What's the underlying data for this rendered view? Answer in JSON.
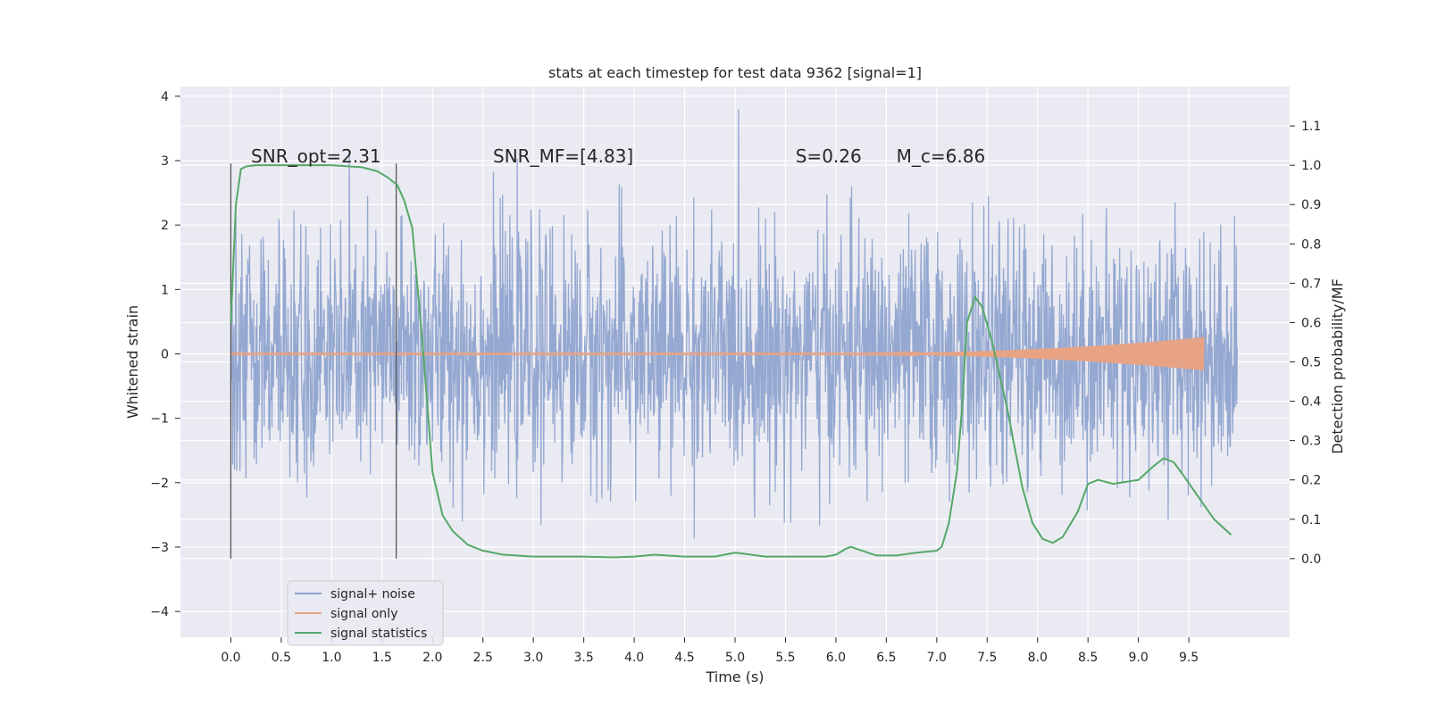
{
  "chart_data": {
    "type": "line",
    "title": "stats at each timestep for test data 9362 [signal=1]",
    "xlabel": "Time (s)",
    "ylabel": "Whitened strain",
    "ylabel_right": "Detection probability/MF",
    "xlim": [
      -0.5,
      10.5
    ],
    "ylim": [
      -4.4,
      4.15
    ],
    "ylim_right": [
      -0.2,
      1.2
    ],
    "xticks": [
      0.0,
      0.5,
      1.0,
      1.5,
      2.0,
      2.5,
      3.0,
      3.5,
      4.0,
      4.5,
      5.0,
      5.5,
      6.0,
      6.5,
      7.0,
      7.5,
      8.0,
      8.5,
      9.0,
      9.5
    ],
    "xtick_labels": [
      "0.0",
      "0.5",
      "1.0",
      "1.5",
      "2.0",
      "2.5",
      "3.0",
      "3.5",
      "4.0",
      "4.5",
      "5.0",
      "5.5",
      "6.0",
      "6.5",
      "7.0",
      "7.5",
      "8.0",
      "8.5",
      "9.0",
      "9.5"
    ],
    "yticks": [
      4,
      3,
      2,
      1,
      0,
      -1,
      -2,
      -3,
      -4
    ],
    "ytick_labels": [
      "4",
      "3",
      "2",
      "1",
      "0",
      "−1",
      "−2",
      "−3",
      "−4"
    ],
    "yticks_right": [
      1.1,
      1.0,
      0.9,
      0.8,
      0.7,
      0.6,
      0.5,
      0.4,
      0.3,
      0.2,
      0.1,
      0.0
    ],
    "ytick_labels_right": [
      "1.1",
      "1.0",
      "0.9",
      "0.8",
      "0.7",
      "0.6",
      "0.5",
      "0.4",
      "0.3",
      "0.2",
      "0.1",
      "0.0"
    ],
    "grid": true,
    "legend_position": "lower-left",
    "annotations": [
      {
        "label": "SNR_opt=2.31",
        "x": 0.2,
        "y": 3.0
      },
      {
        "label": "SNR_MF=[4.83]",
        "x": 2.6,
        "y": 3.0
      },
      {
        "label": "S=0.26",
        "x": 5.6,
        "y": 3.0
      },
      {
        "label": "M_c=6.86",
        "x": 6.6,
        "y": 3.0
      }
    ],
    "vertical_lines_x": [
      0.0,
      1.64
    ],
    "series": [
      {
        "name": "signal+ noise",
        "color": "#8fa4cf",
        "axis": "left",
        "x_range": [
          0.0,
          9.98
        ],
        "std": 0.95
      },
      {
        "name": "signal only",
        "color": "#e8a384",
        "axis": "left",
        "x_range": [
          0.0,
          9.65
        ],
        "envelope_start_x": 6.0,
        "envelope_end_amplitude": 0.25
      },
      {
        "name": "signal statistics",
        "color": "#55a868",
        "axis": "right",
        "x": [
          0.0,
          0.05,
          0.1,
          0.15,
          0.25,
          0.4,
          0.7,
          1.0,
          1.3,
          1.45,
          1.55,
          1.65,
          1.72,
          1.8,
          1.9,
          2.0,
          2.1,
          2.2,
          2.35,
          2.5,
          2.7,
          3.0,
          3.5,
          3.8,
          4.0,
          4.2,
          4.5,
          4.8,
          5.0,
          5.1,
          5.3,
          5.6,
          5.9,
          6.0,
          6.1,
          6.15,
          6.2,
          6.4,
          6.6,
          6.8,
          7.0,
          7.05,
          7.12,
          7.2,
          7.25,
          7.3,
          7.38,
          7.45,
          7.55,
          7.7,
          7.85,
          7.95,
          8.05,
          8.15,
          8.25,
          8.4,
          8.5,
          8.6,
          8.75,
          9.0,
          9.15,
          9.25,
          9.35,
          9.45,
          9.6,
          9.75,
          9.92
        ],
        "y": [
          0.6,
          0.9,
          0.99,
          0.997,
          1.0,
          1.0,
          1.0,
          1.0,
          0.995,
          0.985,
          0.97,
          0.95,
          0.91,
          0.84,
          0.55,
          0.22,
          0.11,
          0.07,
          0.035,
          0.02,
          0.01,
          0.005,
          0.005,
          0.003,
          0.005,
          0.01,
          0.005,
          0.005,
          0.015,
          0.012,
          0.005,
          0.005,
          0.005,
          0.01,
          0.025,
          0.03,
          0.025,
          0.008,
          0.008,
          0.015,
          0.02,
          0.03,
          0.09,
          0.22,
          0.38,
          0.6,
          0.665,
          0.64,
          0.55,
          0.38,
          0.18,
          0.09,
          0.05,
          0.04,
          0.055,
          0.12,
          0.19,
          0.2,
          0.19,
          0.2,
          0.235,
          0.255,
          0.245,
          0.21,
          0.155,
          0.1,
          0.06
        ]
      }
    ]
  }
}
